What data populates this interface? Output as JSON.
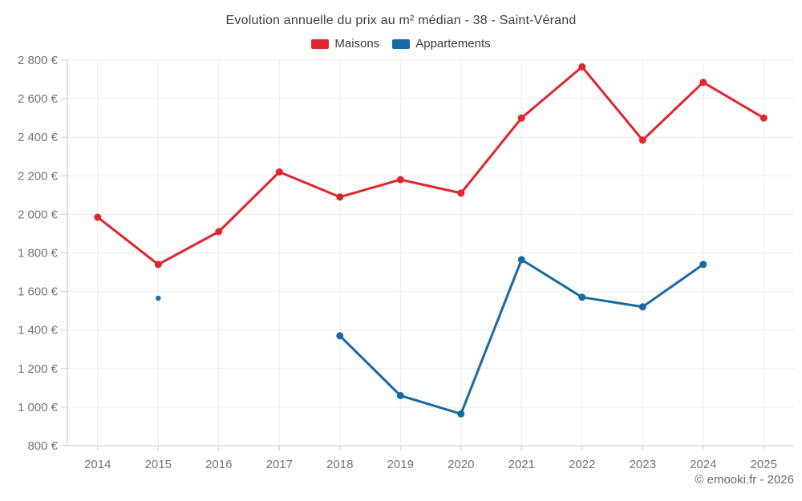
{
  "title": "Evolution annuelle du prix au m² médian - 38 - Saint-Vérand",
  "legend": {
    "items": [
      {
        "label": "Maisons",
        "color": "#e1242d"
      },
      {
        "label": "Appartements",
        "color": "#176aa2"
      }
    ]
  },
  "footer": "© emooki.fr - 2026",
  "colors": {
    "maisons": "#e1242d",
    "appartements": "#176aa2",
    "grid": "#ececec",
    "axis": "#c9c9c9",
    "tick_label": "#757575",
    "title_text": "#404040",
    "background": "#ffffff"
  },
  "chart_data": {
    "type": "line",
    "x": [
      2014,
      2015,
      2016,
      2017,
      2018,
      2019,
      2020,
      2021,
      2022,
      2023,
      2024,
      2025
    ],
    "series": [
      {
        "name": "Maisons",
        "color": "#e1242d",
        "values": [
          1985,
          1740,
          1910,
          2220,
          2090,
          2180,
          2110,
          2500,
          2765,
          2385,
          2685,
          2500
        ]
      },
      {
        "name": "Appartements",
        "color": "#176aa2",
        "values": [
          null,
          1565,
          null,
          null,
          1370,
          1060,
          965,
          1765,
          1570,
          1520,
          1740,
          null
        ]
      }
    ],
    "title": "Evolution annuelle du prix au m² médian - 38 - Saint-Vérand",
    "xlabel": "",
    "ylabel": "",
    "ytick_suffix": " €",
    "ylim": [
      800,
      2800
    ],
    "ytick_step": 200,
    "grid": true,
    "legend_position": "top"
  }
}
